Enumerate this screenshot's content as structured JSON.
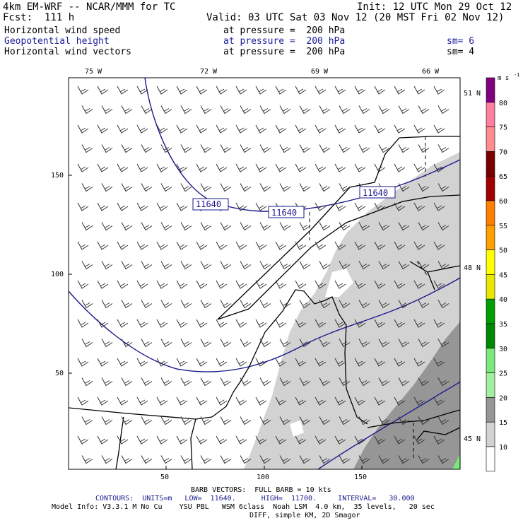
{
  "header": {
    "model": "4km EM-WRF -- NCAR/MMM for TC",
    "init": "Init: 12 UTC Mon 29 Oct 12",
    "fcst": "Fcst:  111 h",
    "valid": "Valid: 03 UTC Sat 03 Nov 12 (20 MST Fri 02 Nov 12)"
  },
  "fields": [
    {
      "name": "Horizontal wind speed",
      "level": "at pressure =  200 hPa",
      "sm": ""
    },
    {
      "name": "Geopotential height",
      "level": "at pressure =  200 hPa",
      "sm": "sm= 6"
    },
    {
      "name": "Horizontal wind vectors",
      "level": "at pressure =  200 hPa",
      "sm": "sm= 4"
    }
  ],
  "axes": {
    "lon_labels": [
      "75 W",
      "72 W",
      "69 W",
      "66 W"
    ],
    "lat_labels": [
      "51 N",
      "48 N",
      "45 N"
    ],
    "x_ticks": [
      "50",
      "100",
      "150"
    ],
    "y_ticks": [
      "150",
      "100",
      "50"
    ]
  },
  "contour_labels": [
    "11640",
    "11640",
    "11640"
  ],
  "colorbar": {
    "unit": "m s",
    "unit_sup": "-1",
    "levels": [
      "80",
      "75",
      "70",
      "65",
      "60",
      "55",
      "50",
      "45",
      "40",
      "35",
      "30",
      "25",
      "20",
      "15",
      "10"
    ],
    "colors": [
      "#800080",
      "#ff7f9f",
      "#ff8c8c",
      "#7a0000",
      "#a00000",
      "#ff7f00",
      "#ff9f00",
      "#ffff00",
      "#e8e800",
      "#00a000",
      "#008800",
      "#7ae87a",
      "#a0f0a0",
      "#969696",
      "#d2d2d2",
      "#ffffff"
    ]
  },
  "footer": {
    "barb": "BARB VECTORS:  FULL BARB = 10 kts",
    "contours": "CONTOURS:  UNITS=m   LOW=  11640.      HIGH=  11700.     INTERVAL=   30.000",
    "model_info": "Model Info: V3.3.1 M No Cu    YSU PBL   WSM 6class  Noah LSM  4.0 km,  35 levels,   20 sec",
    "diff": "DIFF, simple KM, 2D Smagor"
  },
  "colors": {
    "contour": "#1a1a8c",
    "shade_light": "#d2d2d2",
    "shade_dark": "#969696",
    "green": "#7ae87a"
  }
}
